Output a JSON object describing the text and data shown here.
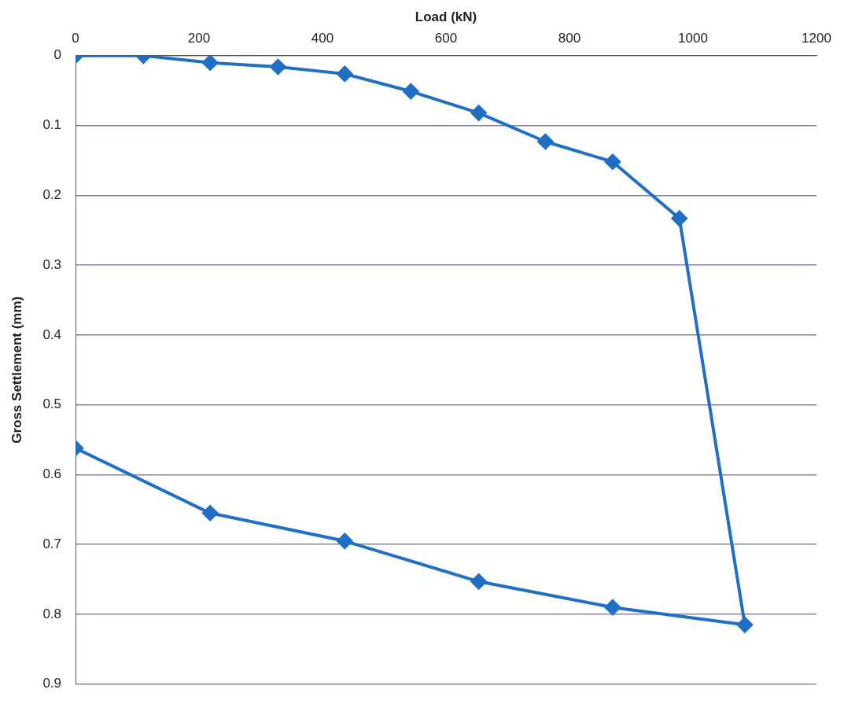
{
  "chart_data": {
    "type": "line",
    "xlabel": "Load (kN)",
    "ylabel": "Gross Settlement (mm)",
    "x": [
      0,
      110,
      218,
      328,
      436,
      543,
      653,
      761,
      870,
      978,
      1084,
      870,
      653,
      436,
      218,
      0
    ],
    "series": [
      {
        "color": "#1f6fc5",
        "values": [
          0,
          0,
          0.01,
          0.016,
          0.026,
          0.051,
          0.082,
          0.123,
          0.152,
          0.233,
          0.815,
          0.79,
          0.753,
          0.695,
          0.655,
          0.562
        ]
      }
    ],
    "xlim": [
      0,
      1200
    ],
    "xticks": [
      0,
      200,
      400,
      600,
      800,
      1000,
      1200
    ],
    "ylim": [
      0.9,
      0
    ],
    "yticks": [
      0,
      0.1,
      0.2,
      0.3,
      0.4,
      0.5,
      0.6,
      0.7,
      0.8,
      0.9
    ],
    "grid": "y",
    "legend": false,
    "marker": "diamond",
    "line_style": "solid"
  }
}
